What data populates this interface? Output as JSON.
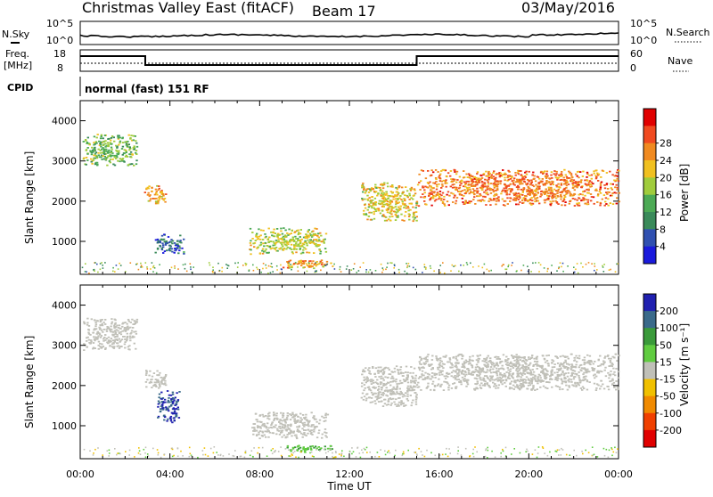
{
  "header": {
    "title": "Christmas Valley East (fitACF)",
    "beam": "Beam 17",
    "date": "03/May/2016"
  },
  "noise_panel": {
    "left_label": "N.Sky",
    "right_label": "N.Search",
    "left_ticks": [
      "10^5",
      "10^0"
    ],
    "right_ticks": [
      "10^5",
      "10^0"
    ]
  },
  "freq_panel": {
    "left_label_line1": "Freq.",
    "left_label_line2": "[MHz]",
    "right_label": "Nave",
    "left_ticks": [
      "18",
      "8"
    ],
    "right_ticks": [
      "60",
      "0"
    ]
  },
  "cpid": {
    "label": "CPID",
    "text": "normal (fast) 151 RF"
  },
  "x_axis": {
    "label": "Time UT",
    "tick_labels": [
      "00:00",
      "04:00",
      "08:00",
      "12:00",
      "16:00",
      "20:00",
      "00:00"
    ],
    "range_hours": [
      0,
      24
    ]
  },
  "power_panel": {
    "ylabel": "Slant Range [km]",
    "y_tick_labels": [
      "1000",
      "2000",
      "3000",
      "4000"
    ],
    "colorbar_label": "Power [dB]",
    "colorbar_ticks": [
      "4",
      "8",
      "12",
      "16",
      "20",
      "24",
      "28"
    ]
  },
  "velocity_panel": {
    "ylabel": "Slant Range [km]",
    "y_tick_labels": [
      "1000",
      "2000",
      "3000",
      "4000"
    ],
    "colorbar_label": "Velocity [m s⁻¹]",
    "colorbar_ticks": [
      "200",
      "100",
      "50",
      "15",
      "-15",
      "-50",
      "-100",
      "-200"
    ]
  },
  "colors": {
    "power_scale": [
      "#1a1adc",
      "#3050b0",
      "#3a8a5a",
      "#4caa55",
      "#a0cc3c",
      "#f0c020",
      "#f08a20",
      "#f04a20",
      "#e00000"
    ],
    "velocity_scale": [
      "#2020b0",
      "#3a6a8a",
      "#3a9a3a",
      "#60cc40",
      "#c0c0b8",
      "#f0c000",
      "#f08a00",
      "#f04000",
      "#e00000"
    ]
  },
  "chart_data": [
    {
      "type": "heatmap",
      "name": "power",
      "x_unit": "hours UT",
      "y_unit": "km",
      "xlim": [
        0,
        24
      ],
      "ylim": [
        180,
        4500
      ],
      "blobs": [
        {
          "t0": 0.1,
          "t1": 2.5,
          "r0": 2900,
          "r1": 3700,
          "value": 14
        },
        {
          "t0": 2.8,
          "t1": 3.8,
          "r0": 1950,
          "r1": 2400,
          "value": 22
        },
        {
          "t0": 3.3,
          "t1": 4.6,
          "r0": 700,
          "r1": 1200,
          "value": 6
        },
        {
          "t0": 7.5,
          "t1": 11.0,
          "r0": 700,
          "r1": 1350,
          "value": 17
        },
        {
          "t0": 9.0,
          "t1": 11.2,
          "r0": 350,
          "r1": 550,
          "value": 22
        },
        {
          "t0": 12.5,
          "t1": 15.0,
          "r0": 1500,
          "r1": 2500,
          "value": 19
        },
        {
          "t0": 15.0,
          "t1": 24.0,
          "r0": 1900,
          "r1": 2800,
          "value": 24
        }
      ]
    },
    {
      "type": "heatmap",
      "name": "velocity",
      "x_unit": "hours UT",
      "y_unit": "km",
      "xlim": [
        0,
        24
      ],
      "ylim": [
        180,
        4500
      ],
      "blobs": [
        {
          "t0": 0.1,
          "t1": 2.5,
          "r0": 2900,
          "r1": 3700,
          "value": 0
        },
        {
          "t0": 2.8,
          "t1": 3.8,
          "r0": 1950,
          "r1": 2400,
          "value": 0
        },
        {
          "t0": 3.4,
          "t1": 4.4,
          "r0": 1100,
          "r1": 1900,
          "value": 150
        },
        {
          "t0": 7.5,
          "t1": 11.0,
          "r0": 700,
          "r1": 1350,
          "value": 0
        },
        {
          "t0": 9.0,
          "t1": 11.2,
          "r0": 350,
          "r1": 550,
          "value": 30
        },
        {
          "t0": 12.5,
          "t1": 15.0,
          "r0": 1500,
          "r1": 2500,
          "value": 0
        },
        {
          "t0": 15.0,
          "t1": 24.0,
          "r0": 1900,
          "r1": 2800,
          "value": 0
        }
      ]
    }
  ]
}
